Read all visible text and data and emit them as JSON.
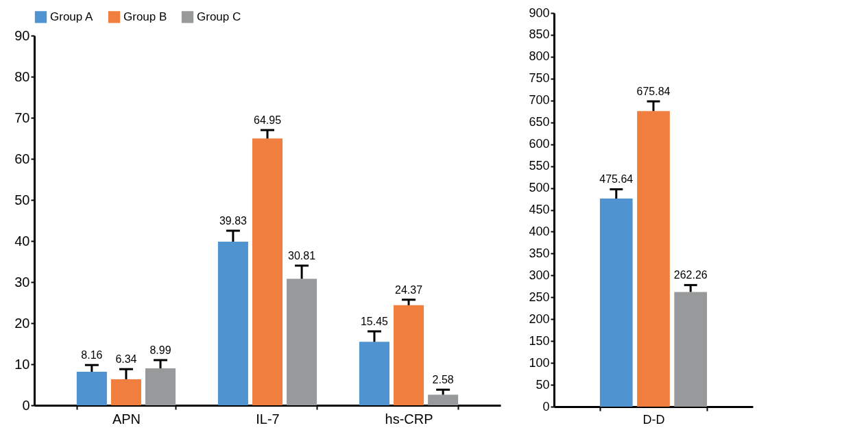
{
  "chart_data": [
    {
      "type": "bar",
      "categories": [
        "APN",
        "IL-7",
        "hs-CRP"
      ],
      "legend": "top",
      "data_labels": true,
      "ylim": [
        0,
        90
      ],
      "yticks": [
        0,
        10,
        20,
        30,
        40,
        50,
        60,
        70,
        80,
        90
      ],
      "grid": false,
      "series": [
        {
          "name": "Group A",
          "color": "#4f94d0",
          "values": [
            8.16,
            39.83,
            15.45
          ],
          "errors": [
            [
              8.16,
              9.8
            ],
            [
              39.83,
              42.5
            ],
            [
              15.45,
              18
            ]
          ]
        },
        {
          "name": "Group B",
          "color": "#f07f3f",
          "values": [
            6.34,
            64.95,
            24.37
          ],
          "errors": [
            [
              6.34,
              8.8
            ],
            [
              64.95,
              67
            ],
            [
              24.37,
              25.7
            ]
          ]
        },
        {
          "name": "Group C",
          "color": "#97999a",
          "values": [
            8.99,
            30.81,
            2.58
          ],
          "errors": [
            [
              8.99,
              11
            ],
            [
              30.81,
              34
            ],
            [
              2.58,
              3.8
            ]
          ]
        }
      ]
    },
    {
      "type": "bar",
      "categories": [
        "D-D"
      ],
      "data_labels": true,
      "ylim": [
        0,
        900
      ],
      "yticks": [
        0,
        50,
        100,
        150,
        200,
        250,
        300,
        350,
        400,
        450,
        500,
        550,
        600,
        650,
        700,
        750,
        800,
        850,
        900
      ],
      "grid": false,
      "series": [
        {
          "color": "#4f94d0",
          "values": [
            475.64
          ],
          "errors": [
            [
              475.64,
              497
            ]
          ]
        },
        {
          "color": "#f07f3f",
          "values": [
            675.84
          ],
          "errors": [
            [
              675.84,
              698
            ]
          ]
        },
        {
          "color": "#97999a",
          "values": [
            262.26
          ],
          "errors": [
            [
              262.26,
              278
            ]
          ]
        }
      ]
    }
  ]
}
